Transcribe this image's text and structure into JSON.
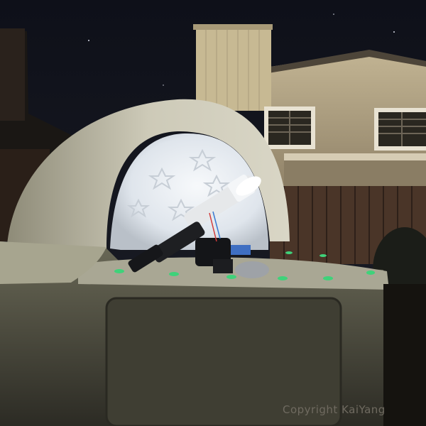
{
  "photo": {
    "watermark": "Copyright KaiYang",
    "colors": {
      "sky": "#12141d",
      "house_wall": "#b2a488",
      "chimney": "#c7b993",
      "fence": "#4a3528",
      "dome_shell": "#c9c6b4",
      "dome_interior": "#e9edf2",
      "enclosure_body": "#5b5a4c",
      "led_green": "#3fd27a"
    }
  }
}
